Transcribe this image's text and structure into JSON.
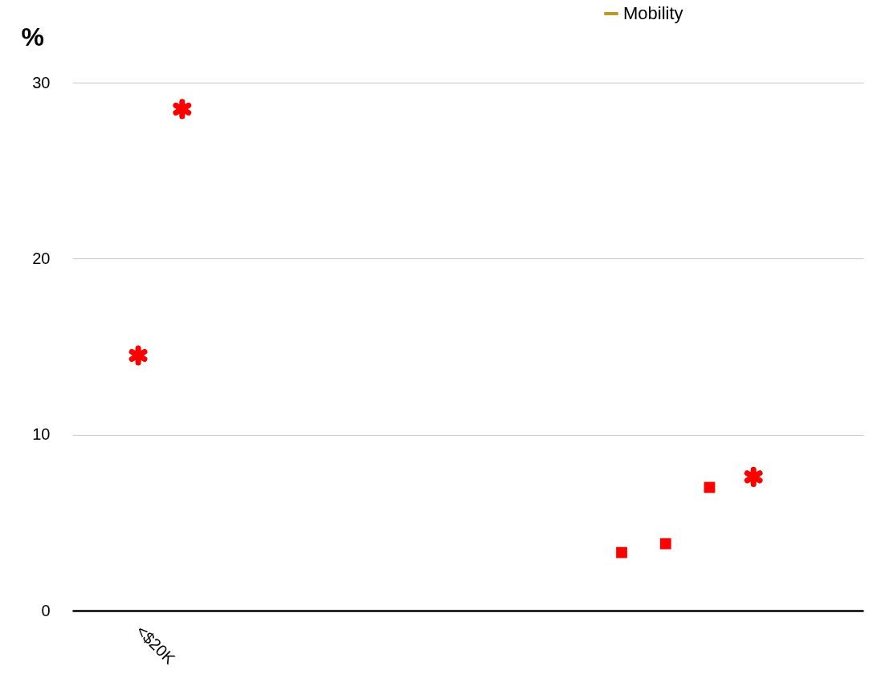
{
  "chart_data": {
    "type": "scatter",
    "ylabel": "%",
    "categories": [
      null,
      "<$20K",
      null,
      null,
      null,
      null,
      null,
      null,
      null,
      null,
      null,
      null,
      null,
      null,
      null,
      null,
      null,
      null
    ],
    "series": [
      {
        "color": "#ff0000",
        "marker": "cross",
        "values": [
          null,
          14.5,
          28.5,
          null,
          null,
          null,
          null,
          null,
          null,
          null,
          null,
          null,
          null,
          null,
          null,
          7.6,
          null,
          null
        ]
      },
      {
        "color": "#ff0000",
        "marker": "square",
        "values": [
          null,
          null,
          null,
          null,
          null,
          null,
          null,
          null,
          null,
          null,
          null,
          null,
          3.3,
          3.8,
          7.0,
          null,
          null,
          null
        ]
      },
      {
        "name": "Mobility",
        "type": "line",
        "color": "#c0961e",
        "values": [
          null,
          null,
          null,
          null,
          null,
          null,
          null,
          null,
          null,
          null,
          null,
          null,
          null,
          null,
          null,
          null,
          null,
          null
        ]
      }
    ],
    "ylim": [
      0,
      30
    ],
    "yticks": [
      0,
      10,
      20,
      30
    ],
    "grid": "y",
    "legend": "top"
  }
}
